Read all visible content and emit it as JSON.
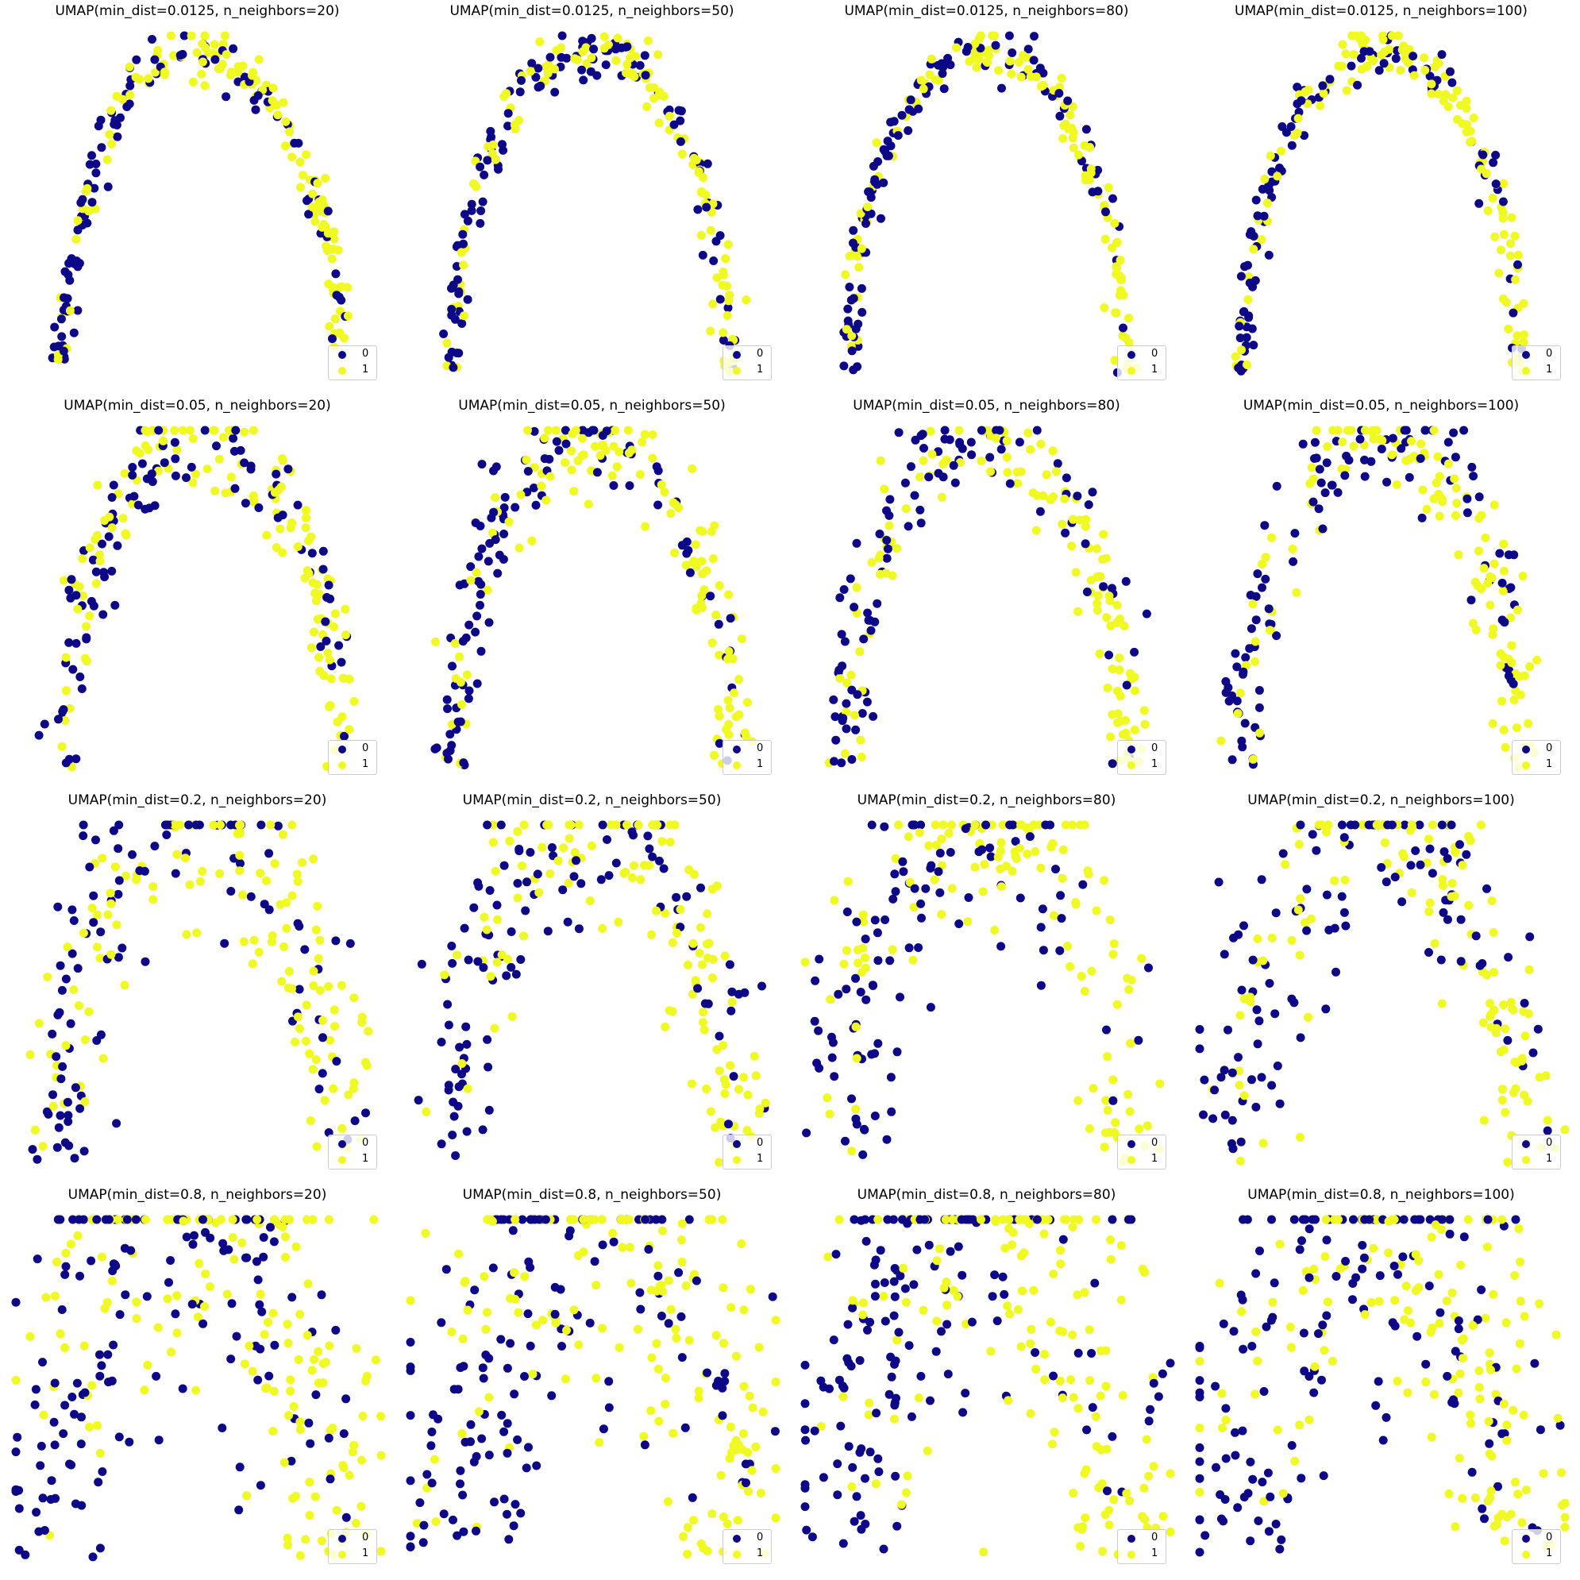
{
  "chart_data": [
    {
      "type": "scatter",
      "title": "UMAP(min_dist=0.0125, n_neighbors=20)",
      "legend": [
        "0",
        "1"
      ],
      "legend_placement": "lower-right",
      "grid": false,
      "axes": "off"
    },
    {
      "type": "scatter",
      "title": "UMAP(min_dist=0.0125, n_neighbors=50)",
      "legend": [
        "0",
        "1"
      ],
      "legend_placement": "lower-right",
      "grid": false,
      "axes": "off"
    },
    {
      "type": "scatter",
      "title": "UMAP(min_dist=0.0125, n_neighbors=80)",
      "legend": [
        "0",
        "1"
      ],
      "legend_placement": "lower-right",
      "grid": false,
      "axes": "off"
    },
    {
      "type": "scatter",
      "title": "UMAP(min_dist=0.0125, n_neighbors=100)",
      "legend": [
        "0",
        "1"
      ],
      "legend_placement": "lower-right",
      "grid": false,
      "axes": "off"
    },
    {
      "type": "scatter",
      "title": "UMAP(min_dist=0.05, n_neighbors=20)",
      "legend": [
        "0",
        "1"
      ],
      "legend_placement": "lower-right",
      "grid": false,
      "axes": "off"
    },
    {
      "type": "scatter",
      "title": "UMAP(min_dist=0.05, n_neighbors=50)",
      "legend": [
        "0",
        "1"
      ],
      "legend_placement": "lower-right",
      "grid": false,
      "axes": "off"
    },
    {
      "type": "scatter",
      "title": "UMAP(min_dist=0.05, n_neighbors=80)",
      "legend": [
        "0",
        "1"
      ],
      "legend_placement": "lower-right",
      "grid": false,
      "axes": "off"
    },
    {
      "type": "scatter",
      "title": "UMAP(min_dist=0.05, n_neighbors=100)",
      "legend": [
        "0",
        "1"
      ],
      "legend_placement": "lower-right",
      "grid": false,
      "axes": "off"
    },
    {
      "type": "scatter",
      "title": "UMAP(min_dist=0.2, n_neighbors=20)",
      "legend": [
        "0",
        "1"
      ],
      "legend_placement": "lower-right",
      "grid": false,
      "axes": "off"
    },
    {
      "type": "scatter",
      "title": "UMAP(min_dist=0.2, n_neighbors=50)",
      "legend": [
        "0",
        "1"
      ],
      "legend_placement": "lower-right",
      "grid": false,
      "axes": "off"
    },
    {
      "type": "scatter",
      "title": "UMAP(min_dist=0.2, n_neighbors=80)",
      "legend": [
        "0",
        "1"
      ],
      "legend_placement": "lower-right",
      "grid": false,
      "axes": "off"
    },
    {
      "type": "scatter",
      "title": "UMAP(min_dist=0.2, n_neighbors=100)",
      "legend": [
        "0",
        "1"
      ],
      "legend_placement": "lower-right",
      "grid": false,
      "axes": "off"
    },
    {
      "type": "scatter",
      "title": "UMAP(min_dist=0.8, n_neighbors=20)",
      "legend": [
        "0",
        "1"
      ],
      "legend_placement": "lower-right",
      "grid": false,
      "axes": "off"
    },
    {
      "type": "scatter",
      "title": "UMAP(min_dist=0.8, n_neighbors=50)",
      "legend": [
        "0",
        "1"
      ],
      "legend_placement": "lower-right",
      "grid": false,
      "axes": "off"
    },
    {
      "type": "scatter",
      "title": "UMAP(min_dist=0.8, n_neighbors=80)",
      "legend": [
        "0",
        "1"
      ],
      "legend_placement": "lower-right",
      "grid": false,
      "axes": "off"
    },
    {
      "type": "scatter",
      "title": "UMAP(min_dist=0.8, n_neighbors=100)",
      "legend": [
        "0",
        "1"
      ],
      "legend_placement": "lower-right",
      "grid": false,
      "axes": "off"
    }
  ],
  "colors": {
    "class_0": "#0d0887",
    "class_1": "#f0f921"
  }
}
